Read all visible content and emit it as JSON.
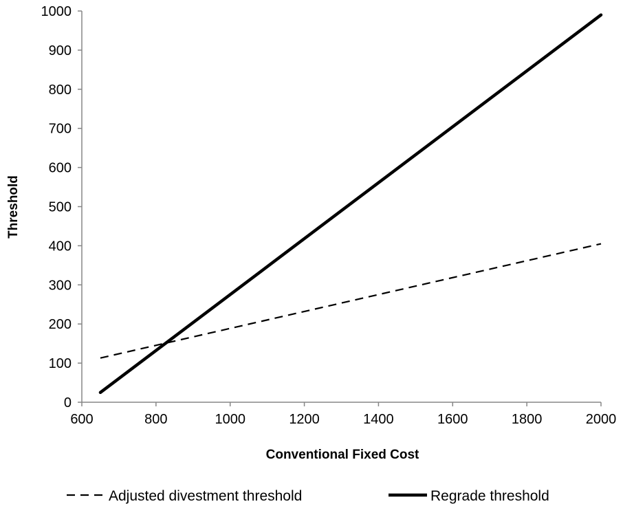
{
  "chart_data": {
    "type": "line",
    "title": "",
    "xlabel": "Conventional Fixed Cost",
    "ylabel": "Threshold",
    "xlim": [
      600,
      2000
    ],
    "ylim": [
      0,
      1000
    ],
    "x_ticks": [
      600,
      800,
      1000,
      1200,
      1400,
      1600,
      1800,
      2000
    ],
    "y_ticks": [
      0,
      100,
      200,
      300,
      400,
      500,
      600,
      700,
      800,
      900,
      1000
    ],
    "grid": false,
    "legend_position": "bottom",
    "series": [
      {
        "name": "Adjusted divestment threshold",
        "style": "dashed",
        "color": "#000000",
        "x": [
          650,
          2000
        ],
        "y": [
          113,
          405
        ]
      },
      {
        "name": "Regrade threshold",
        "style": "solid",
        "color": "#000000",
        "x": [
          650,
          2000
        ],
        "y": [
          25,
          990
        ]
      }
    ]
  }
}
